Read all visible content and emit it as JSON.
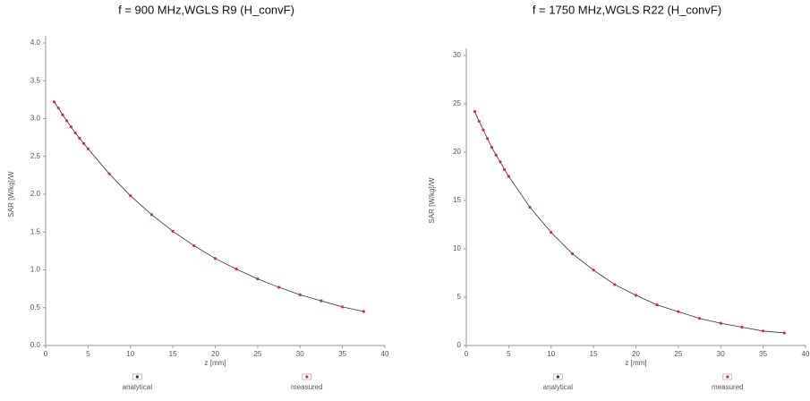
{
  "chart_data": [
    {
      "type": "scatter",
      "title": "f = 900 MHz,WGLS R9 (H_convF)",
      "x_label": "z [mm]",
      "y_label": "SAR [W/kg]/W",
      "x": [
        1,
        1.5,
        2,
        2.5,
        3,
        3.5,
        4,
        4.5,
        5,
        7.5,
        10,
        12.5,
        15,
        17.5,
        20,
        22.5,
        25,
        27.5,
        30,
        32.5,
        35,
        37.5
      ],
      "series": [
        {
          "name": "analytical",
          "color": "#333333",
          "values": [
            3.22,
            3.14,
            3.05,
            2.97,
            2.89,
            2.81,
            2.74,
            2.67,
            2.6,
            2.27,
            1.98,
            1.73,
            1.51,
            1.32,
            1.15,
            1.01,
            0.88,
            0.77,
            0.67,
            0.59,
            0.51,
            0.45
          ]
        },
        {
          "name": "measured",
          "color": "#cc3333",
          "values": [
            3.22,
            3.14,
            3.05,
            2.97,
            2.89,
            2.81,
            2.74,
            2.67,
            2.6,
            2.27,
            1.98,
            1.73,
            1.51,
            1.32,
            1.15,
            1.01,
            0.88,
            0.77,
            0.67,
            0.59,
            0.51,
            0.45
          ]
        }
      ],
      "xlim": [
        0,
        40
      ],
      "xticks": [
        0,
        5,
        10,
        15,
        20,
        25,
        30,
        35,
        40
      ],
      "ylim": [
        0,
        4
      ],
      "yticks": [
        {
          "value": 0,
          "label": "0.0"
        },
        {
          "value": 0.5,
          "label": "0.5"
        },
        {
          "value": 1,
          "label": "1.0"
        },
        {
          "value": 1.5,
          "label": "1.5"
        },
        {
          "value": 2,
          "label": "2.0"
        },
        {
          "value": 2.5,
          "label": "2.5"
        },
        {
          "value": 3,
          "label": "3.0"
        },
        {
          "value": 3.5,
          "label": "3.5"
        },
        {
          "value": 4,
          "label": "4.0"
        }
      ]
    },
    {
      "type": "scatter",
      "title": "f = 1750 MHz,WGLS R22 (H_convF)",
      "x_label": "z [mm]",
      "y_label": "SAR [W/kg]/W",
      "x": [
        1,
        1.5,
        2,
        2.5,
        3,
        3.5,
        4,
        4.5,
        5,
        7.5,
        10,
        12.5,
        15,
        17.5,
        20,
        22.5,
        25,
        27.5,
        30,
        32.5,
        35,
        37.5
      ],
      "series": [
        {
          "name": "analytical",
          "color": "#333333",
          "values": [
            24.2,
            23.2,
            22.3,
            21.4,
            20.5,
            19.7,
            19.0,
            18.2,
            17.5,
            14.3,
            11.7,
            9.5,
            7.8,
            6.3,
            5.2,
            4.2,
            3.5,
            2.8,
            2.3,
            1.9,
            1.5,
            1.3
          ]
        },
        {
          "name": "measured",
          "color": "#cc3333",
          "values": [
            24.2,
            23.2,
            22.3,
            21.4,
            20.5,
            19.7,
            19.0,
            18.2,
            17.5,
            14.3,
            11.7,
            9.5,
            7.8,
            6.3,
            5.2,
            4.2,
            3.5,
            2.8,
            2.3,
            1.9,
            1.5,
            1.3
          ]
        }
      ],
      "xlim": [
        0,
        40
      ],
      "xticks": [
        0,
        5,
        10,
        15,
        20,
        25,
        30,
        35,
        40
      ],
      "ylim": [
        0,
        30
      ],
      "yticks": [
        0,
        5,
        10,
        15,
        20,
        25,
        30
      ]
    }
  ]
}
